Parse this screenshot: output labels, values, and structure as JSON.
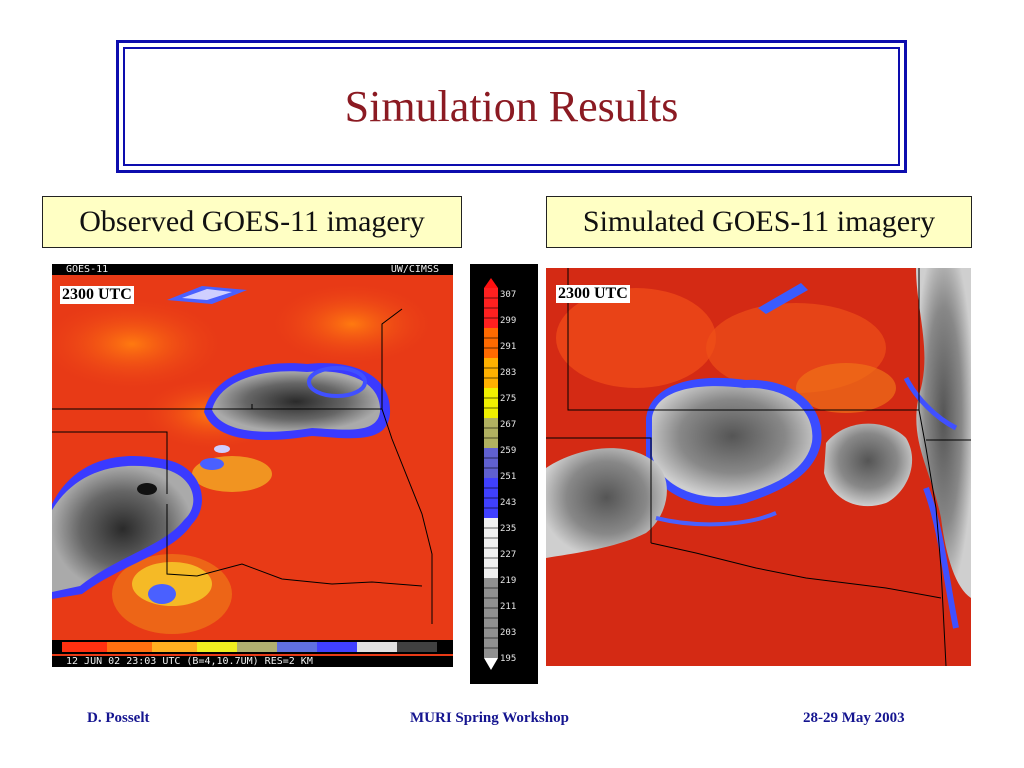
{
  "slide": {
    "title": "Simulation Results",
    "colors": {
      "title_text": "#8b1a22",
      "title_border": "#0d0dae",
      "caption_bg": "#ffffc4",
      "footer_text": "#151590"
    }
  },
  "observed": {
    "caption": "Observed GOES-11 imagery",
    "header_left": "GOES-11",
    "header_right": "UW/CIMSS",
    "time_label": "2300 UTC",
    "footer": "12 JUN 02 23:03 UTC (B=4,10.7UM) RES=2 KM"
  },
  "simulated": {
    "caption": "Simulated GOES-11 imagery",
    "time_label": "2300 UTC"
  },
  "colorbar": {
    "ticks": [
      "307",
      "299",
      "291",
      "283",
      "275",
      "267",
      "259",
      "251",
      "243",
      "235",
      "227",
      "219",
      "211",
      "203",
      "195"
    ],
    "colors": [
      "#ff1010",
      "#ff6000",
      "#ffb000",
      "#f0f000",
      "#b0b060",
      "#6060d0",
      "#4040ff",
      "#d0d0d0",
      "#808080",
      "#ffffff"
    ]
  },
  "footer": {
    "author": "D. Posselt",
    "event": "MURI Spring Workshop",
    "date": "28-29 May 2003"
  }
}
